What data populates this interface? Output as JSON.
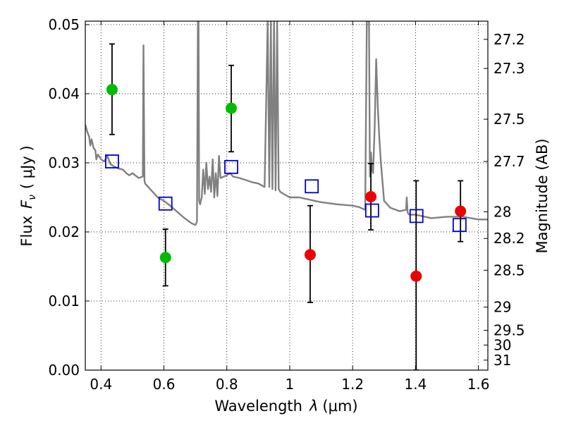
{
  "chart_data": {
    "type": "scatter",
    "x_axis": {
      "label_prefix": "Wavelength",
      "label_symbol": "λ",
      "label_unit": "(μm)",
      "range": [
        0.35,
        1.63
      ],
      "ticks": [
        0.4,
        0.6,
        0.8,
        1.0,
        1.2,
        1.4,
        1.6
      ],
      "tick_labels": [
        "0.4",
        "0.6",
        "0.8",
        "1",
        "1.2",
        "1.4",
        "1.6"
      ]
    },
    "y_axis": {
      "label_prefix": "Flux",
      "label_symbol": "F",
      "label_subscript": "ν",
      "label_unit": "( μJy )",
      "range": [
        0.0,
        0.0505
      ],
      "ticks": [
        0.0,
        0.01,
        0.02,
        0.03,
        0.04,
        0.05
      ],
      "tick_labels": [
        "0.00",
        "0.01",
        "0.02",
        "0.03",
        "0.04",
        "0.05"
      ]
    },
    "y2_axis": {
      "label": "Magnitude (AB)",
      "ticks": [
        27.2,
        27.3,
        27.5,
        27.7,
        28,
        28.2,
        28.5,
        29,
        29.5,
        30,
        31
      ],
      "tick_labels": [
        "27.2",
        "27.3",
        "27.5",
        "27.7",
        "28",
        "28.2",
        "28.5",
        "29",
        "29.5",
        "30",
        "31"
      ]
    },
    "grid": true,
    "colors": {
      "model_line": "#808080",
      "green_points": "#00bb00",
      "red_points": "#ee0000",
      "model_photometry": "#0000cc",
      "error_bars": "#000000"
    },
    "series": [
      {
        "kind": "model_spectrum",
        "x": [
          0.35,
          0.356,
          0.362,
          0.366,
          0.37,
          0.376,
          0.382,
          0.385,
          0.39,
          0.4,
          0.41,
          0.42,
          0.43,
          0.44,
          0.455,
          0.47,
          0.48,
          0.49,
          0.5,
          0.52,
          0.533,
          0.535,
          0.538,
          0.54,
          0.56,
          0.58,
          0.6,
          0.62,
          0.64,
          0.66,
          0.68,
          0.69,
          0.7,
          0.705,
          0.708,
          0.71,
          0.712,
          0.715,
          0.72,
          0.725,
          0.73,
          0.735,
          0.74,
          0.745,
          0.75,
          0.755,
          0.76,
          0.765,
          0.77,
          0.775,
          0.78,
          0.79,
          0.8,
          0.81,
          0.82,
          0.84,
          0.86,
          0.88,
          0.9,
          0.92,
          0.93,
          0.935,
          0.94,
          0.945,
          0.95,
          0.955,
          0.96,
          0.965,
          0.97,
          0.98,
          1.0,
          1.03,
          1.05,
          1.08,
          1.1,
          1.15,
          1.2,
          1.22,
          1.24,
          1.245,
          1.248,
          1.252,
          1.255,
          1.258,
          1.262,
          1.265,
          1.27,
          1.275,
          1.28,
          1.285,
          1.29,
          1.3,
          1.32,
          1.35,
          1.37,
          1.372,
          1.375,
          1.38,
          1.4,
          1.45,
          1.5,
          1.55,
          1.6,
          1.63
        ],
        "y": [
          0.0355,
          0.0345,
          0.0338,
          0.0325,
          0.0334,
          0.0322,
          0.0318,
          0.0305,
          0.0312,
          0.0305,
          0.0302,
          0.031,
          0.0298,
          0.0295,
          0.0292,
          0.029,
          0.0285,
          0.0282,
          0.0285,
          0.0278,
          0.028,
          0.047,
          0.0275,
          0.027,
          0.026,
          0.025,
          0.0245,
          0.0238,
          0.023,
          0.0222,
          0.0215,
          0.0212,
          0.021,
          0.0215,
          0.0505,
          0.0505,
          0.0245,
          0.024,
          0.025,
          0.029,
          0.0255,
          0.03,
          0.0262,
          0.028,
          0.0258,
          0.0305,
          0.025,
          0.0285,
          0.0252,
          0.031,
          0.0278,
          0.028,
          0.0282,
          0.0285,
          0.028,
          0.0278,
          0.0275,
          0.0272,
          0.027,
          0.0265,
          0.0505,
          0.0265,
          0.0505,
          0.0262,
          0.0505,
          0.026,
          0.0505,
          0.0262,
          0.0258,
          0.0255,
          0.025,
          0.025,
          0.0248,
          0.0245,
          0.0243,
          0.024,
          0.0238,
          0.0236,
          0.0232,
          0.0505,
          0.0505,
          0.0505,
          0.028,
          0.0315,
          0.029,
          0.0285,
          0.035,
          0.045,
          0.038,
          0.0335,
          0.03,
          0.0245,
          0.0235,
          0.023,
          0.0232,
          0.025,
          0.0228,
          0.0225,
          0.0225,
          0.022,
          0.0222,
          0.0222,
          0.0218,
          0.0218
        ]
      },
      {
        "kind": "observed_green",
        "points": [
          {
            "x": 0.435,
            "y": 0.0406,
            "ylow": 0.0341,
            "yhigh": 0.0472
          },
          {
            "x": 0.605,
            "y": 0.0163,
            "ylow": 0.0122,
            "yhigh": 0.0204
          },
          {
            "x": 0.814,
            "y": 0.0379,
            "ylow": 0.0316,
            "yhigh": 0.0441
          }
        ]
      },
      {
        "kind": "observed_red",
        "points": [
          {
            "x": 1.065,
            "y": 0.0167,
            "ylow": 0.0098,
            "yhigh": 0.0238
          },
          {
            "x": 1.258,
            "y": 0.0251,
            "ylow": 0.0203,
            "yhigh": 0.0299
          },
          {
            "x": 1.402,
            "y": 0.0136,
            "ylow": 0.0,
            "yhigh": 0.0274
          },
          {
            "x": 1.543,
            "y": 0.023,
            "ylow": 0.0186,
            "yhigh": 0.0274
          }
        ]
      },
      {
        "kind": "model_photometry_squares",
        "points": [
          {
            "x": 0.435,
            "y": 0.0302
          },
          {
            "x": 0.605,
            "y": 0.0241
          },
          {
            "x": 0.814,
            "y": 0.0294
          },
          {
            "x": 1.07,
            "y": 0.0266
          },
          {
            "x": 1.262,
            "y": 0.0231
          },
          {
            "x": 1.403,
            "y": 0.0223
          },
          {
            "x": 1.54,
            "y": 0.021
          }
        ]
      }
    ]
  }
}
